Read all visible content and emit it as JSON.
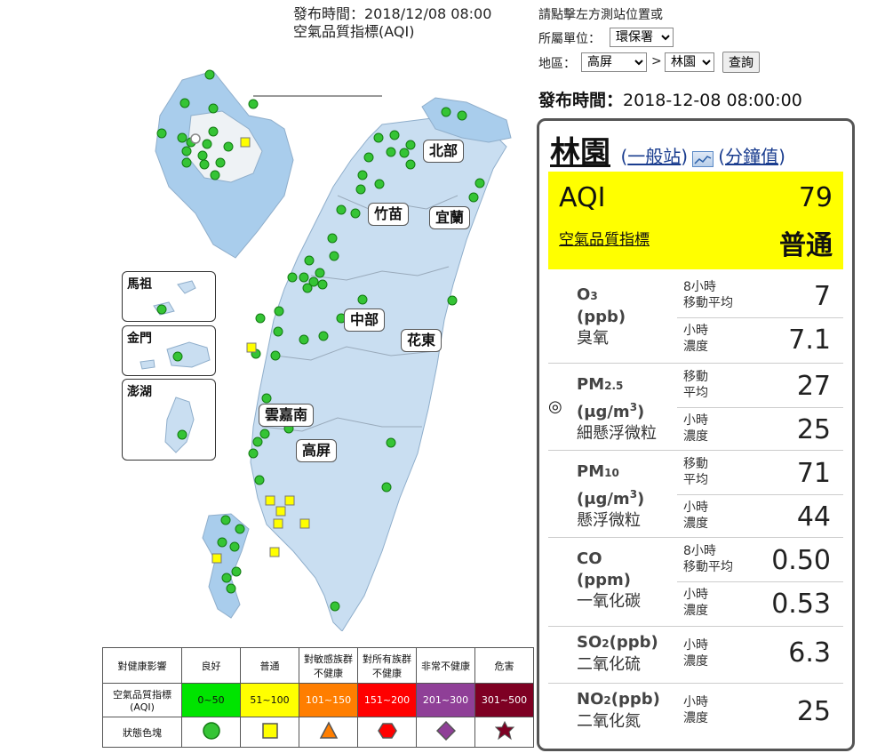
{
  "header": {
    "publish_time_line": "發布時間：2018/12/08 08:00",
    "aqi_title": "空氣品質指標(AQI)"
  },
  "controls": {
    "instruction": "請點擊左方測站位置或",
    "unit_label": "所屬單位：",
    "unit_value": "環保署",
    "area_label": "地區：",
    "area_value": "高屏",
    "arrow": ">",
    "station_value": "林園",
    "query_button": "查詢",
    "publish_label": "發布時間：",
    "publish_value": "2018-12-08 08:00:00"
  },
  "map": {
    "regions": [
      "北部",
      "竹苗",
      "宜蘭",
      "中部",
      "花東",
      "雲嘉南",
      "高屏"
    ],
    "insets": [
      "馬祖",
      "金門",
      "澎湖"
    ],
    "colors": {
      "land": "#c9def1",
      "land_dark": "#a9cdec",
      "good": "#2ecc2e",
      "moderate": "#ffff00"
    }
  },
  "station": {
    "name": "林園",
    "type_link": "一般站",
    "chart_icon": "chart-icon",
    "minute_link": "分鐘值",
    "aqi_label": "AQI",
    "aqi_value": "79",
    "aqi_desc_link": "空氣品質指標",
    "aqi_status": "普通",
    "aqi_color": "#ffff00",
    "pollutants": [
      {
        "name": "O",
        "subscript": "3",
        "unit": "(ppb)",
        "cn": "臭氧",
        "readings": [
          {
            "label1": "8小時",
            "label2": "移動平均",
            "value": "7"
          },
          {
            "label1": "小時",
            "label2": "濃度",
            "value": "7.1"
          }
        ]
      },
      {
        "name": "PM",
        "subscript": "2.5",
        "unit": "(μg/m",
        "unit_sup": "3",
        "unit_end": ")",
        "cn": "細懸浮微粒",
        "marker": "◎",
        "readings": [
          {
            "label1": "移動",
            "label2": "平均",
            "value": "27"
          },
          {
            "label1": "小時",
            "label2": "濃度",
            "value": "25"
          }
        ]
      },
      {
        "name": "PM",
        "subscript": "10",
        "unit": "(μg/m",
        "unit_sup": "3",
        "unit_end": ")",
        "cn": "懸浮微粒",
        "readings": [
          {
            "label1": "移動",
            "label2": "平均",
            "value": "71"
          },
          {
            "label1": "小時",
            "label2": "濃度",
            "value": "44"
          }
        ]
      },
      {
        "name": "CO",
        "unit": "(ppm)",
        "cn": "一氧化碳",
        "readings": [
          {
            "label1": "8小時",
            "label2": "移動平均",
            "value": "0.50"
          },
          {
            "label1": "小時",
            "label2": "濃度",
            "value": "0.53"
          }
        ]
      },
      {
        "name": "SO",
        "subscript": "2",
        "unit_inline": "(ppb)",
        "cn": "二氧化硫",
        "readings": [
          {
            "label1": "小時",
            "label2": "濃度",
            "value": "6.3"
          }
        ]
      },
      {
        "name": "NO",
        "subscript": "2",
        "unit_inline": "(ppb)",
        "cn": "二氧化氮",
        "readings": [
          {
            "label1": "小時",
            "label2": "濃度",
            "value": "25"
          }
        ]
      }
    ]
  },
  "legend": {
    "row_header1": "對健康影響",
    "row_header2": "空氣品質指標(AQI)",
    "row_header3": "狀態色塊",
    "levels": [
      {
        "name": "良好",
        "range": "0~50",
        "color": "#00e400",
        "text_color": "#000",
        "icon": "circle-icon"
      },
      {
        "name": "普通",
        "range": "51~100",
        "color": "#ffff00",
        "text_color": "#000",
        "icon": "square-icon"
      },
      {
        "name": "對敏感族群不健康",
        "range": "101~150",
        "color": "#ff7e00",
        "text_color": "#fff",
        "icon": "triangle-icon"
      },
      {
        "name": "對所有族群不健康",
        "range": "151~200",
        "color": "#ff0000",
        "text_color": "#fff",
        "icon": "hexagon-icon"
      },
      {
        "name": "非常不健康",
        "range": "201~300",
        "color": "#8f3f97",
        "text_color": "#fff",
        "icon": "diamond-icon"
      },
      {
        "name": "危害",
        "range": "301~500",
        "color": "#7e0023",
        "text_color": "#fff",
        "icon": "star-icon"
      }
    ]
  }
}
